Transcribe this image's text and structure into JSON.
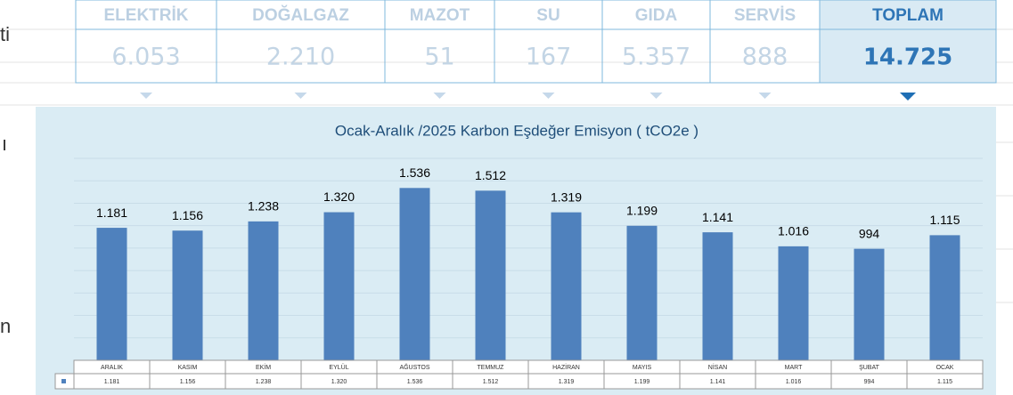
{
  "side_fragments": [
    "ti",
    "ı",
    "n"
  ],
  "summary": {
    "columns": [
      "ELEKTRİK",
      "DOĞALGAZ",
      "MAZOT",
      "SU",
      "GIDA",
      "SERVİS",
      "TOPLAM"
    ],
    "values": [
      "6.053",
      "2.210",
      "51",
      "167",
      "5.357",
      "888",
      "14.725"
    ]
  },
  "chart_data": {
    "type": "bar",
    "title": "Ocak-Aralık /2025 Karbon Eşdeğer Emisyon ( tCO2e )",
    "categories": [
      "ARALIK",
      "KASIM",
      "EKİM",
      "EYLÜL",
      "AĞUSTOS",
      "TEMMUZ",
      "HAZİRAN",
      "MAYIS",
      "NİSAN",
      "MART",
      "ŞUBAT",
      "OCAK"
    ],
    "values": [
      1181,
      1156,
      1238,
      1320,
      1536,
      1512,
      1319,
      1199,
      1141,
      1016,
      994,
      1115
    ],
    "value_labels": [
      "1.181",
      "1.156",
      "1.238",
      "1.320",
      "1.536",
      "1.512",
      "1.319",
      "1.199",
      "1.141",
      "1.016",
      "994",
      "1.115"
    ],
    "color": "#4f81bd",
    "ylim": [
      0,
      1800
    ],
    "yticks": [
      0,
      200,
      400,
      600,
      800,
      1000,
      1200,
      1400,
      1600,
      1800
    ],
    "grid": true,
    "data_table": true
  }
}
